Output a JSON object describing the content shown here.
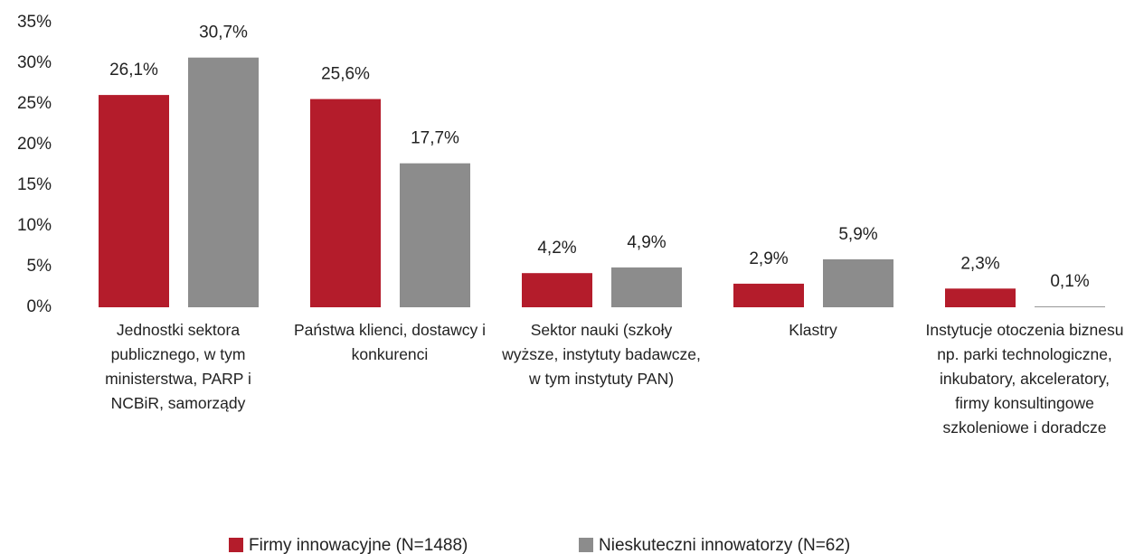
{
  "chart_data": {
    "type": "bar",
    "categories": [
      "Jednostki sektora publicznego, w tym ministerstwa, PARP i NCBiR, samorządy",
      "Państwa klienci, dostawcy i konkurenci",
      "Sektor nauki (szkoły wyższe, instytuty badawcze, w tym instytuty PAN)",
      "Klastry",
      "Instytucje otoczenia biznesu np. parki technologiczne, inkubatory, akceleratory, firmy konsultingowe szkoleniowe i doradcze"
    ],
    "series": [
      {
        "name": "Firmy innowacyjne (N=1488)",
        "color": "#b41c2b",
        "values": [
          26.1,
          25.6,
          4.2,
          2.9,
          2.3
        ],
        "value_labels": [
          "26,1%",
          "25,6%",
          "4,2%",
          "2,9%",
          "2,3%"
        ]
      },
      {
        "name": "Nieskuteczni innowatorzy (N=62)",
        "color": "#8c8c8c",
        "values": [
          30.7,
          17.7,
          4.9,
          5.9,
          0.1
        ],
        "value_labels": [
          "30,7%",
          "17,7%",
          "4,9%",
          "5,9%",
          "0,1%"
        ]
      }
    ],
    "ylim": [
      0,
      35
    ],
    "yticks": [
      {
        "value": 0,
        "label": "0%"
      },
      {
        "value": 5,
        "label": "5%"
      },
      {
        "value": 10,
        "label": "10%"
      },
      {
        "value": 15,
        "label": "15%"
      },
      {
        "value": 20,
        "label": "20%"
      },
      {
        "value": 25,
        "label": "25%"
      },
      {
        "value": 30,
        "label": "30%"
      },
      {
        "value": 35,
        "label": "35%"
      }
    ],
    "grid": false,
    "legend": "bottom"
  }
}
